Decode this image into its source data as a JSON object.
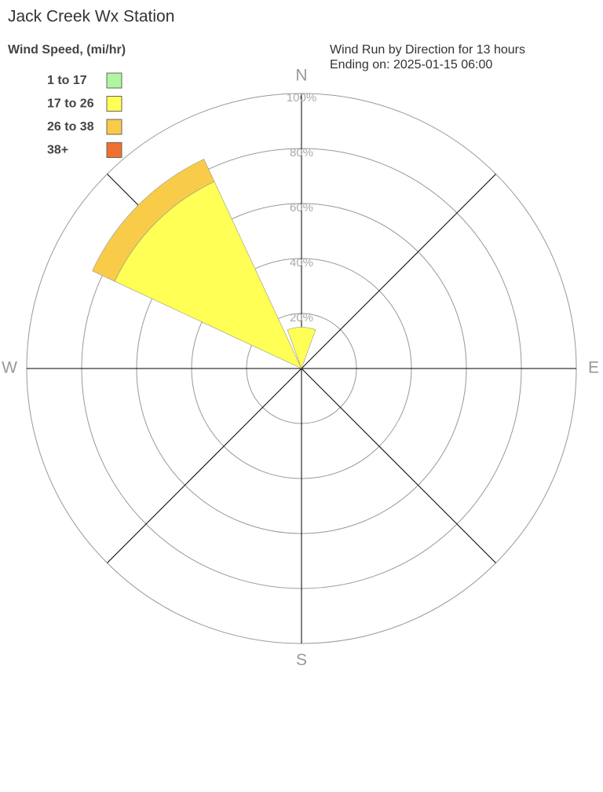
{
  "chart_data": {
    "type": "windrose",
    "title": "Jack Creek Wx Station",
    "legend_title": "Wind Speed, (mi/hr)",
    "subtitle": "Wind Run by Direction for 13 hours",
    "subtitle2": "Ending on: 2025-01-15 06:00",
    "directions": [
      0,
      45,
      90,
      135,
      180,
      225,
      270,
      315
    ],
    "compass_labels": [
      {
        "value": 0,
        "label": "N"
      },
      {
        "value": 90,
        "label": "E"
      },
      {
        "value": 180,
        "label": "S"
      },
      {
        "value": 270,
        "label": "W"
      }
    ],
    "series": [
      {
        "name": "1 to 17",
        "color": "#b0f5a0",
        "values": [
          0,
          0,
          0,
          0,
          0,
          0,
          0,
          0
        ]
      },
      {
        "name": "17 to 26",
        "color": "#ffff55",
        "values": [
          15,
          0,
          0,
          0,
          0,
          0,
          0,
          75
        ]
      },
      {
        "name": "26 to 38",
        "color": "#f8cc48",
        "values": [
          0,
          0,
          0,
          0,
          0,
          0,
          0,
          9
        ]
      },
      {
        "name": "38+",
        "color": "#f07030",
        "values": [
          0,
          0,
          0,
          0,
          0,
          0,
          0,
          0
        ]
      }
    ],
    "rlim": [
      0,
      100
    ],
    "rticks": [
      {
        "value": 20,
        "label": "20%"
      },
      {
        "value": 40,
        "label": "40%"
      },
      {
        "value": 60,
        "label": "60%"
      },
      {
        "value": 80,
        "label": "80%"
      },
      {
        "value": 100,
        "label": "100%"
      }
    ],
    "legend": "top-left"
  }
}
